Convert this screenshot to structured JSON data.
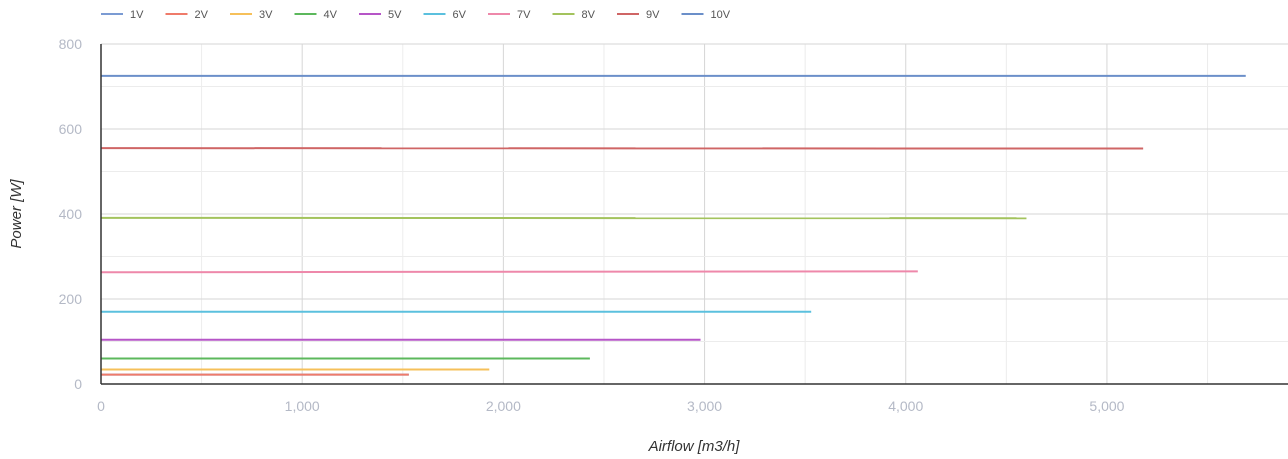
{
  "chart_data": {
    "type": "line",
    "xlabel": "Airflow [m3/h]",
    "ylabel": "Power [W]",
    "xlim": [
      0,
      5900
    ],
    "ylim": [
      0,
      800
    ],
    "x_ticks": [
      "0",
      "1,000",
      "2,000",
      "3,000",
      "4,000",
      "5,000"
    ],
    "x_tick_values": [
      0,
      1000,
      2000,
      3000,
      4000,
      5000
    ],
    "y_ticks": [
      "0",
      "200",
      "400",
      "600",
      "800"
    ],
    "y_tick_values": [
      0,
      200,
      400,
      600,
      800
    ],
    "grid": true,
    "legend_position": "top-left",
    "series": [
      {
        "name": "1V",
        "color": "#7b9bd3",
        "x": [
          0,
          1530
        ],
        "y": [
          22,
          22
        ]
      },
      {
        "name": "2V",
        "color": "#ef7b6a",
        "x": [
          0,
          1530
        ],
        "y": [
          22,
          22
        ]
      },
      {
        "name": "3V",
        "color": "#f6c05a",
        "x": [
          0,
          1930
        ],
        "y": [
          34,
          34
        ]
      },
      {
        "name": "4V",
        "color": "#5cb85c",
        "x": [
          0,
          2430
        ],
        "y": [
          60,
          60
        ]
      },
      {
        "name": "5V",
        "color": "#b655c7",
        "x": [
          0,
          2980
        ],
        "y": [
          104,
          104
        ]
      },
      {
        "name": "6V",
        "color": "#5bc0de",
        "x": [
          0,
          3530
        ],
        "y": [
          170,
          170
        ]
      },
      {
        "name": "7V",
        "color": "#ee88aa",
        "x": [
          0,
          4060
        ],
        "y": [
          263,
          265
        ]
      },
      {
        "name": "8V",
        "color": "#a3c35d",
        "x": [
          0,
          4600
        ],
        "y": [
          391,
          390
        ]
      },
      {
        "name": "9V",
        "color": "#cf6565",
        "x": [
          0,
          5180
        ],
        "y": [
          555,
          554
        ]
      },
      {
        "name": "10V",
        "color": "#6b8fc9",
        "x": [
          0,
          5690
        ],
        "y": [
          725,
          725
        ]
      }
    ]
  }
}
